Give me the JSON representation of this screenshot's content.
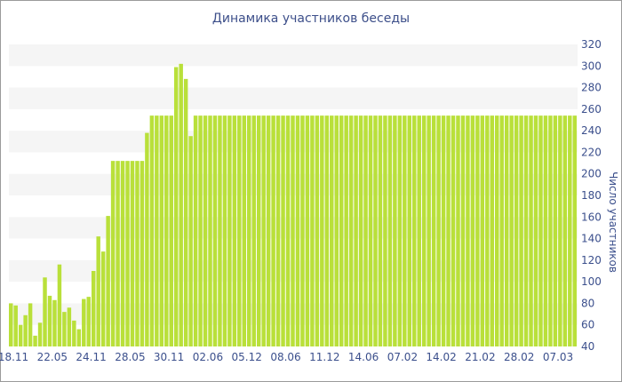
{
  "chart_data": {
    "type": "bar",
    "title": "Динамика участников беседы",
    "ylabel": "Число участников",
    "xlabel": "",
    "ylim": [
      40,
      320
    ],
    "y_ticks": [
      40,
      60,
      80,
      100,
      120,
      140,
      160,
      180,
      200,
      220,
      240,
      260,
      280,
      300,
      320
    ],
    "x_tick_labels": [
      "18.11",
      "22.05",
      "24.11",
      "28.05",
      "30.11",
      "02.06",
      "05.12",
      "08.06",
      "11.12",
      "14.06",
      "07.02",
      "14.02",
      "21.02",
      "28.02",
      "07.03"
    ],
    "grid": "alternating horizontal bands",
    "bar_color": "#b9e03a",
    "values": [
      80,
      78,
      60,
      69,
      80,
      50,
      62,
      104,
      87,
      83,
      116,
      72,
      76,
      64,
      56,
      84,
      86,
      110,
      142,
      128,
      161,
      212,
      212,
      212,
      212,
      212,
      212,
      212,
      238,
      254,
      254,
      254,
      254,
      254,
      299,
      302,
      288,
      235,
      254,
      254,
      254,
      254,
      254,
      254,
      254,
      254,
      254,
      254,
      254,
      254,
      254,
      254,
      254,
      254,
      254,
      254,
      254,
      254,
      254,
      254,
      254,
      254,
      254,
      254,
      254,
      254,
      254,
      254,
      254,
      254,
      254,
      254,
      254,
      254,
      254,
      254,
      254,
      254,
      254,
      254,
      254,
      254,
      254,
      254,
      254,
      254,
      254,
      254,
      254,
      254,
      254,
      254,
      254,
      254,
      254,
      254,
      254,
      254,
      254,
      254,
      254,
      254,
      254,
      254,
      254,
      254,
      254,
      254,
      254,
      254,
      254,
      254,
      254,
      254,
      254,
      254,
      254
    ]
  }
}
